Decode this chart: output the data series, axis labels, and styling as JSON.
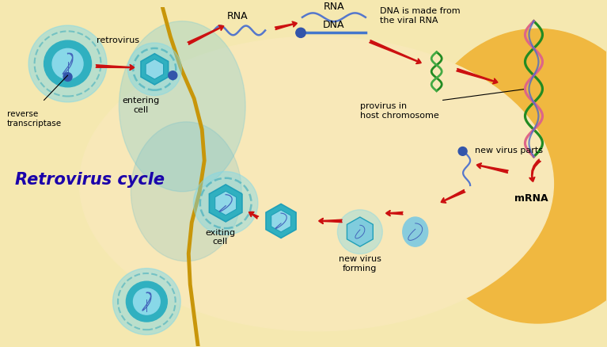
{
  "title": "Retrovirus cycle",
  "title_color": "#1a00aa",
  "title_fontsize": 15,
  "bg_outer": "#f0c060",
  "bg_inner": "#f8e8b8",
  "bg_light": "#f5e8b0",
  "cell_line_color": "#c8960a",
  "teal_color": "#30b0c0",
  "teal_light": "#80d8e8",
  "teal_ring": "#20a0b8",
  "red_color": "#cc1010",
  "green_color": "#228B22",
  "green2": "#44aa44",
  "pink_color": "#dd6688",
  "blue_color": "#4466bb",
  "blue_dot": "#3355aa",
  "orange_bg": "#f0b840",
  "fig_width": 7.67,
  "fig_height": 4.38,
  "dpi": 100,
  "labels": {
    "retrovirus": "retrovirus",
    "reverse_transcriptase": "reverse\ntranscriptase",
    "entering_cell": "entering\ncell",
    "rna1": "RNA",
    "rna2": "RNA",
    "dna": "DNA",
    "dna_made": "DNA is made from\nthe viral RNA",
    "provirus": "provirus in\nhost chromosome",
    "mrna": "mRNA",
    "new_virus_parts": "new virus parts",
    "new_virus_forming": "new virus\nforming",
    "exiting_cell": "exiting\ncell"
  }
}
